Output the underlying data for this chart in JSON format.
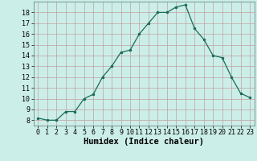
{
  "x": [
    0,
    1,
    2,
    3,
    4,
    5,
    6,
    7,
    8,
    9,
    10,
    11,
    12,
    13,
    14,
    15,
    16,
    17,
    18,
    19,
    20,
    21,
    22,
    23
  ],
  "y": [
    8.2,
    8.0,
    8.0,
    8.8,
    8.8,
    10.0,
    10.4,
    12.0,
    13.0,
    14.3,
    14.5,
    16.0,
    17.0,
    18.0,
    18.0,
    18.5,
    18.7,
    16.5,
    15.5,
    14.0,
    13.8,
    12.0,
    10.5,
    10.1
  ],
  "xlabel": "Humidex (Indice chaleur)",
  "xlim": [
    -0.5,
    23.5
  ],
  "ylim": [
    7.5,
    19.0
  ],
  "yticks": [
    8,
    9,
    10,
    11,
    12,
    13,
    14,
    15,
    16,
    17,
    18
  ],
  "xticks": [
    0,
    1,
    2,
    3,
    4,
    5,
    6,
    7,
    8,
    9,
    10,
    11,
    12,
    13,
    14,
    15,
    16,
    17,
    18,
    19,
    20,
    21,
    22,
    23
  ],
  "line_color": "#1a6b5a",
  "marker_color": "#1a6b5a",
  "bg_color": "#cceee8",
  "grid_color": "#c0a0a0",
  "xlabel_fontsize": 7.5,
  "tick_fontsize": 6.0
}
